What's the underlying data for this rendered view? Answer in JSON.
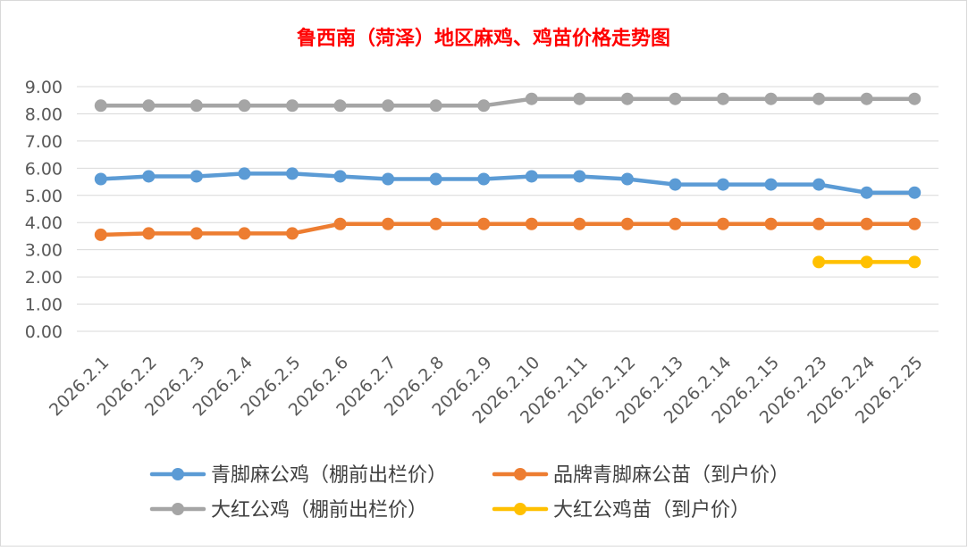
{
  "chart_data": {
    "type": "line",
    "title": "鲁西南（菏泽）地区麻鸡、鸡苗价格走势图",
    "categories": [
      "2026.2.1",
      "2026.2.2",
      "2026.2.3",
      "2026.2.4",
      "2026.2.5",
      "2026.2.6",
      "2026.2.7",
      "2026.2.8",
      "2026.2.9",
      "2026.2.10",
      "2026.2.11",
      "2026.2.12",
      "2026.2.13",
      "2026.2.14",
      "2026.2.15",
      "2026.2.23",
      "2026.2.24",
      "2026.2.25"
    ],
    "y_ticks": [
      "0.00",
      "1.00",
      "2.00",
      "3.00",
      "4.00",
      "5.00",
      "6.00",
      "7.00",
      "8.00",
      "9.00"
    ],
    "ylim": [
      0,
      9
    ],
    "grid": "horizontal",
    "legend_position": "bottom",
    "series": [
      {
        "name": "青脚麻公鸡（棚前出栏价）",
        "color": "#5b9bd5",
        "values": [
          5.6,
          5.7,
          5.7,
          5.8,
          5.8,
          5.7,
          5.6,
          5.6,
          5.6,
          5.7,
          5.7,
          5.6,
          5.4,
          5.4,
          5.4,
          5.4,
          5.1,
          5.1
        ]
      },
      {
        "name": "品牌青脚麻公苗（到户价）",
        "color": "#ed7d31",
        "values": [
          3.55,
          3.6,
          3.6,
          3.6,
          3.6,
          3.95,
          3.95,
          3.95,
          3.95,
          3.95,
          3.95,
          3.95,
          3.95,
          3.95,
          3.95,
          3.95,
          3.95,
          3.95
        ]
      },
      {
        "name": "大红公鸡（棚前出栏价）",
        "color": "#a5a5a5",
        "values": [
          8.3,
          8.3,
          8.3,
          8.3,
          8.3,
          8.3,
          8.3,
          8.3,
          8.3,
          8.55,
          8.55,
          8.55,
          8.55,
          8.55,
          8.55,
          8.55,
          8.55,
          8.55
        ]
      },
      {
        "name": "大红公鸡苗（到户价）",
        "color": "#ffc000",
        "values": [
          null,
          null,
          null,
          null,
          null,
          null,
          null,
          null,
          null,
          null,
          null,
          null,
          null,
          null,
          null,
          2.55,
          2.55,
          2.55
        ]
      }
    ],
    "title_color": "#ff0000"
  }
}
